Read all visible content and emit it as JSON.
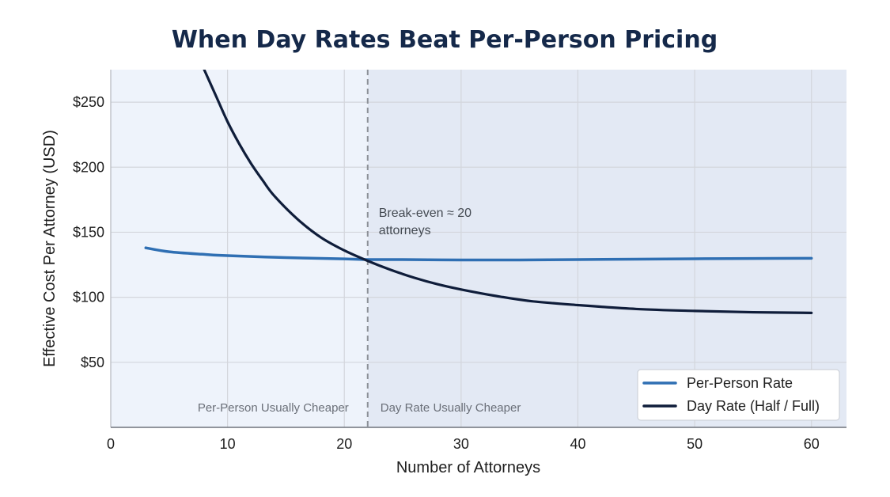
{
  "chart_data": {
    "type": "line",
    "title": "When Day Rates Beat Per-Person Pricing",
    "xlabel": "Number of Attorneys",
    "ylabel": "Effective Cost Per Attorney (USD)",
    "xlim": [
      0,
      63
    ],
    "ylim": [
      0,
      275
    ],
    "x_ticks": [
      0,
      10,
      20,
      30,
      40,
      50,
      60
    ],
    "y_ticks": [
      50,
      100,
      150,
      200,
      250
    ],
    "y_tick_labels": [
      "$50",
      "$100",
      "$150",
      "$200",
      "$250"
    ],
    "grid": true,
    "legend_position": "bottom-right",
    "series": [
      {
        "name": "Per-Person Rate",
        "color": "#2f6fb3",
        "x": [
          3,
          5,
          8,
          10,
          15,
          20,
          22,
          25,
          30,
          35,
          40,
          45,
          50,
          55,
          60
        ],
        "y": [
          138,
          135,
          133,
          132,
          130.5,
          129.5,
          129,
          129,
          128.7,
          128.7,
          129,
          129.3,
          129.6,
          129.8,
          130
        ]
      },
      {
        "name": "Day Rate (Half / Full)",
        "color": "#0f1d3a",
        "x": [
          8,
          9,
          10,
          11,
          12,
          13,
          14,
          16,
          18,
          20,
          22,
          24,
          26,
          28,
          30,
          33,
          36,
          40,
          45,
          50,
          55,
          60
        ],
        "y": [
          275,
          255,
          235,
          218,
          203,
          190,
          178,
          160,
          146,
          136,
          128,
          121,
          115,
          110,
          106,
          101,
          97,
          94,
          91,
          89.5,
          88.5,
          88
        ]
      }
    ],
    "break_even": {
      "x": 22,
      "label_lines": [
        "Break-even ≈ 20",
        "attorneys"
      ]
    },
    "regions": [
      {
        "label": "Per-Person Usually Cheaper",
        "x_start": 0,
        "x_end": 22,
        "color": "#eef3fb"
      },
      {
        "label": "Day Rate Usually Cheaper",
        "x_start": 22,
        "x_end": 63,
        "color": "#e3e9f4"
      }
    ]
  }
}
